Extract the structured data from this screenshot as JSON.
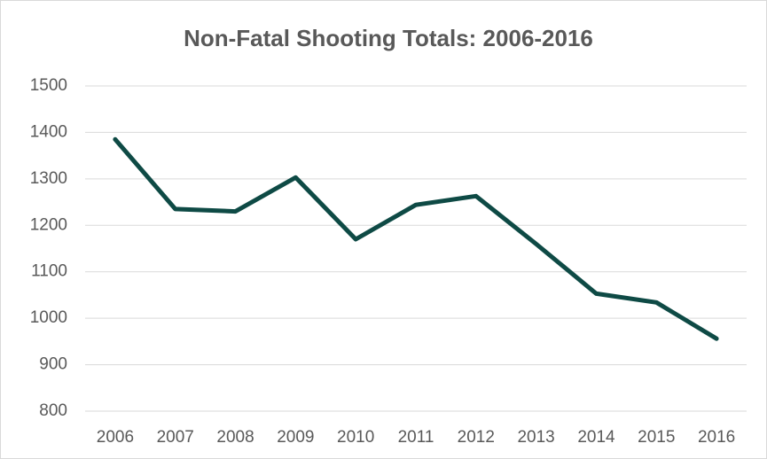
{
  "chart_data": {
    "type": "line",
    "title": "Non-Fatal Shooting Totals: 2006-2016",
    "categories": [
      "2006",
      "2007",
      "2008",
      "2009",
      "2010",
      "2011",
      "2012",
      "2013",
      "2014",
      "2015",
      "2016"
    ],
    "values": [
      1385,
      1235,
      1230,
      1303,
      1170,
      1244,
      1263,
      1160,
      1053,
      1034,
      956
    ],
    "color": "#0e4a45",
    "ylim": [
      800,
      1500
    ],
    "yticks": [
      800,
      900,
      1000,
      1100,
      1200,
      1300,
      1400,
      1500
    ],
    "grid": true
  }
}
